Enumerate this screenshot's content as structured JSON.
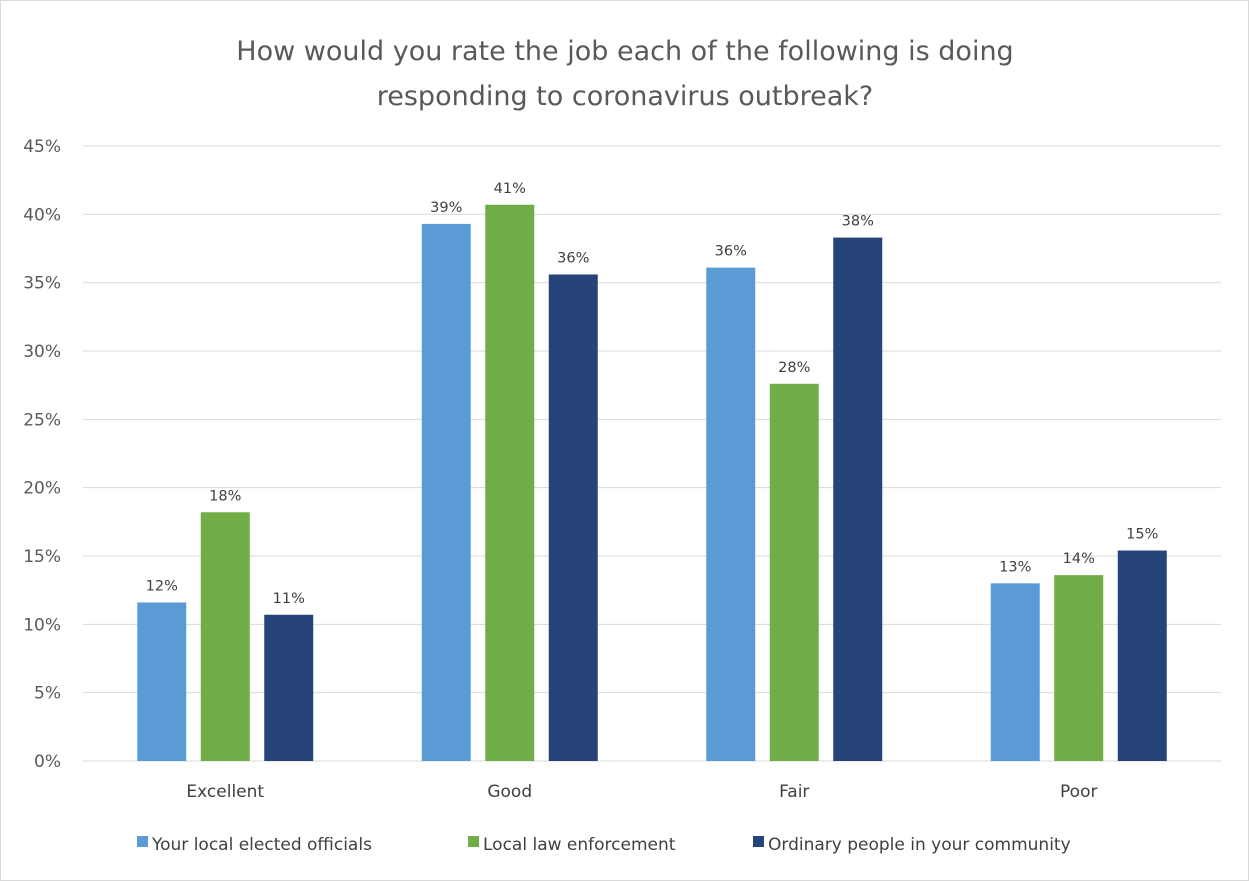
{
  "chart_data": {
    "type": "bar",
    "title": "How would you rate the job each of the following is doing responding to coronavirus outbreak?",
    "title_lines": [
      "How would you rate the job each of the following is doing",
      "responding to coronavirus outbreak?"
    ],
    "categories": [
      "Excellent",
      "Good",
      "Fair",
      "Poor"
    ],
    "series": [
      {
        "name": "Your local elected officials",
        "color": "#5b9bd5",
        "values": [
          11.6,
          39.3,
          36.1,
          13.0
        ],
        "labels": [
          "12%",
          "39%",
          "36%",
          "13%"
        ]
      },
      {
        "name": "Local law enforcement",
        "color": "#70ad47",
        "values": [
          18.2,
          40.7,
          27.6,
          13.6
        ],
        "labels": [
          "18%",
          "41%",
          "28%",
          "14%"
        ]
      },
      {
        "name": "Ordinary people in your community",
        "color": "#264478",
        "values": [
          10.7,
          35.6,
          38.3,
          15.4
        ],
        "labels": [
          "11%",
          "36%",
          "38%",
          "15%"
        ]
      }
    ],
    "ylim": [
      0,
      45
    ],
    "yticks": [
      0,
      5,
      10,
      15,
      20,
      25,
      30,
      35,
      40,
      45
    ],
    "ytick_labels": [
      "0%",
      "5%",
      "10%",
      "15%",
      "20%",
      "25%",
      "30%",
      "35%",
      "40%",
      "45%"
    ],
    "xlabel": "",
    "ylabel": "",
    "grid": true,
    "legend": "bottom"
  }
}
